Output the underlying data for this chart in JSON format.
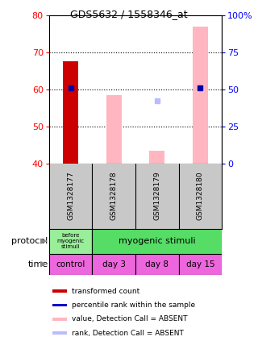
{
  "title": "GDS5632 / 1558346_at",
  "samples": [
    "GSM1328177",
    "GSM1328178",
    "GSM1328179",
    "GSM1328180"
  ],
  "left_ylim": [
    40,
    80
  ],
  "left_yticks": [
    40,
    50,
    60,
    70,
    80
  ],
  "right_ylim": [
    0,
    100
  ],
  "right_yticks": [
    0,
    25,
    50,
    75,
    100
  ],
  "right_yticklabels": [
    "0",
    "25",
    "50",
    "75",
    "100%"
  ],
  "red_bars": [
    67.5,
    null,
    null,
    null
  ],
  "pink_bars": [
    null,
    58.5,
    43.5,
    77.0
  ],
  "blue_squares": [
    60.5,
    null,
    null,
    60.5
  ],
  "light_blue_squares": [
    null,
    null,
    57.0,
    null
  ],
  "dotted_lines": [
    50,
    60,
    70
  ],
  "protocol_colors": [
    "#99EE99",
    "#55DD66"
  ],
  "time_labels": [
    "control",
    "day 3",
    "day 8",
    "day 15"
  ],
  "time_color": "#EE66DD",
  "legend_labels": [
    "transformed count",
    "percentile rank within the sample",
    "value, Detection Call = ABSENT",
    "rank, Detection Call = ABSENT"
  ],
  "legend_colors": [
    "#CC0000",
    "#0000CC",
    "#FFB6C1",
    "#BBBBFF"
  ],
  "bar_width": 0.35,
  "bg_color": "#FFFFFF",
  "box_bg": "#C8C8C8",
  "red_color": "#CC0000",
  "pink_color": "#FFB6C1",
  "blue_color": "#0000AA",
  "light_blue_color": "#BBBBFF"
}
